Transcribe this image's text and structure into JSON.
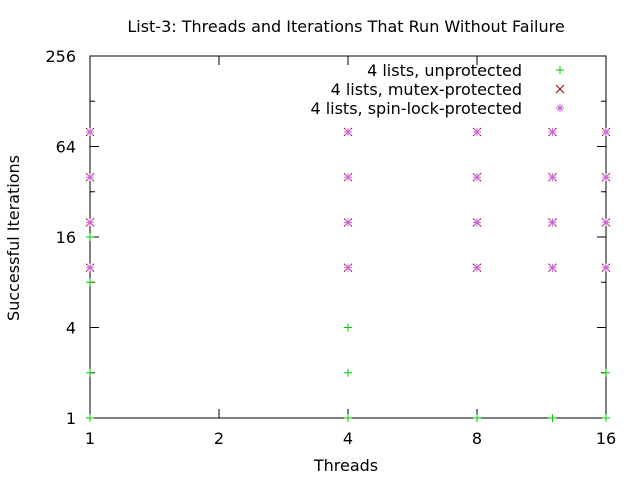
{
  "chart_data": {
    "type": "scatter",
    "title": "List-3: Threads and Iterations That Run Without Failure",
    "xlabel": "Threads",
    "ylabel": "Successful Iterations",
    "x_scale": "log2",
    "y_scale": "log2",
    "xlim": [
      1,
      16
    ],
    "ylim": [
      1,
      256
    ],
    "x_ticks": [
      1,
      2,
      4,
      8,
      16
    ],
    "y_ticks": [
      1,
      4,
      16,
      64,
      256
    ],
    "grid": false,
    "legend_position": "top-right",
    "series": [
      {
        "name": "4 lists, unprotected",
        "color": "#00cc00",
        "marker": "plus",
        "points": [
          {
            "x": 1,
            "y": 1
          },
          {
            "x": 1,
            "y": 2
          },
          {
            "x": 1,
            "y": 8
          },
          {
            "x": 1,
            "y": 16
          },
          {
            "x": 4,
            "y": 1
          },
          {
            "x": 4,
            "y": 2
          },
          {
            "x": 4,
            "y": 4
          },
          {
            "x": 8,
            "y": 1
          },
          {
            "x": 12,
            "y": 1
          },
          {
            "x": 16,
            "y": 1
          },
          {
            "x": 16,
            "y": 2
          }
        ]
      },
      {
        "name": "4 lists, mutex-protected",
        "color": "#9b0000",
        "marker": "cross",
        "points": [
          {
            "x": 1,
            "y": 10
          },
          {
            "x": 1,
            "y": 20
          },
          {
            "x": 1,
            "y": 40
          },
          {
            "x": 1,
            "y": 80
          },
          {
            "x": 4,
            "y": 10
          },
          {
            "x": 4,
            "y": 20
          },
          {
            "x": 4,
            "y": 40
          },
          {
            "x": 4,
            "y": 80
          },
          {
            "x": 8,
            "y": 10
          },
          {
            "x": 8,
            "y": 20
          },
          {
            "x": 8,
            "y": 40
          },
          {
            "x": 8,
            "y": 80
          },
          {
            "x": 12,
            "y": 10
          },
          {
            "x": 12,
            "y": 20
          },
          {
            "x": 12,
            "y": 40
          },
          {
            "x": 12,
            "y": 80
          },
          {
            "x": 16,
            "y": 10
          },
          {
            "x": 16,
            "y": 20
          },
          {
            "x": 16,
            "y": 40
          },
          {
            "x": 16,
            "y": 80
          }
        ]
      },
      {
        "name": "4 lists, spin-lock-protected",
        "color": "#cc66dd",
        "marker": "star",
        "points": [
          {
            "x": 1,
            "y": 10
          },
          {
            "x": 1,
            "y": 20
          },
          {
            "x": 1,
            "y": 40
          },
          {
            "x": 1,
            "y": 80
          },
          {
            "x": 4,
            "y": 10
          },
          {
            "x": 4,
            "y": 20
          },
          {
            "x": 4,
            "y": 40
          },
          {
            "x": 4,
            "y": 80
          },
          {
            "x": 8,
            "y": 10
          },
          {
            "x": 8,
            "y": 20
          },
          {
            "x": 8,
            "y": 40
          },
          {
            "x": 8,
            "y": 80
          },
          {
            "x": 12,
            "y": 10
          },
          {
            "x": 12,
            "y": 20
          },
          {
            "x": 12,
            "y": 40
          },
          {
            "x": 12,
            "y": 80
          },
          {
            "x": 16,
            "y": 10
          },
          {
            "x": 16,
            "y": 20
          },
          {
            "x": 16,
            "y": 40
          },
          {
            "x": 16,
            "y": 80
          }
        ]
      }
    ]
  }
}
